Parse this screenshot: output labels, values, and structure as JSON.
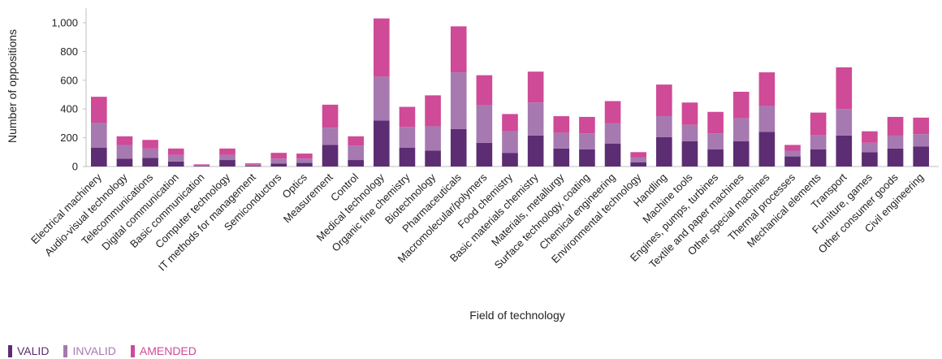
{
  "chart_data": {
    "type": "bar",
    "stacked": true,
    "xlabel": "Field of technology",
    "ylabel": "Number of oppositions",
    "ylim": [
      0,
      1100
    ],
    "yticks": [
      0,
      200,
      400,
      600,
      800,
      1000
    ],
    "ytick_labels": [
      "0",
      "200",
      "400",
      "600",
      "800",
      "1,000"
    ],
    "grid": false,
    "legend_position": "bottom-left",
    "categories": [
      "Electrical machinery",
      "Audio-visual technology",
      "Telecommunications",
      "Digital communication",
      "Basic communication",
      "Computer technology",
      "IT methods for management",
      "Semiconductors",
      "Optics",
      "Measurement",
      "Control",
      "Medical technology",
      "Organic fine chemistry",
      "Biotechnology",
      "Pharmaceuticals",
      "Macromolecular/polymers",
      "Food chemistry",
      "Basic materials chemistry",
      "Materials, metallurgy",
      "Surface technology, coating",
      "Chemical engineering",
      "Environmental technology",
      "Handling",
      "Machine tools",
      "Engines, pumps, turbines",
      "Textile and paper machines",
      "Other special machines",
      "Thermal processes",
      "Mechanical elements",
      "Transport",
      "Furniture, games",
      "Other consumer goods",
      "Civil engineering"
    ],
    "series": [
      {
        "name": "VALID",
        "color": "#5c2d73",
        "values": [
          130,
          55,
          60,
          35,
          3,
          45,
          5,
          20,
          25,
          150,
          45,
          320,
          130,
          110,
          260,
          165,
          95,
          215,
          125,
          120,
          160,
          30,
          205,
          175,
          120,
          175,
          240,
          70,
          120,
          215,
          100,
          125,
          140
        ]
      },
      {
        "name": "INVALID",
        "color": "#a679b0",
        "values": [
          175,
          95,
          65,
          45,
          4,
          35,
          8,
          35,
          30,
          120,
          100,
          305,
          145,
          170,
          395,
          260,
          150,
          230,
          110,
          110,
          140,
          35,
          145,
          115,
          110,
          160,
          180,
          40,
          100,
          185,
          65,
          90,
          85
        ]
      },
      {
        "name": "AMENDED",
        "color": "#cf4a97",
        "values": [
          180,
          60,
          60,
          45,
          8,
          45,
          9,
          40,
          35,
          160,
          65,
          405,
          140,
          215,
          320,
          210,
          120,
          215,
          115,
          115,
          155,
          35,
          220,
          155,
          150,
          185,
          235,
          40,
          155,
          290,
          80,
          130,
          115
        ]
      }
    ]
  }
}
